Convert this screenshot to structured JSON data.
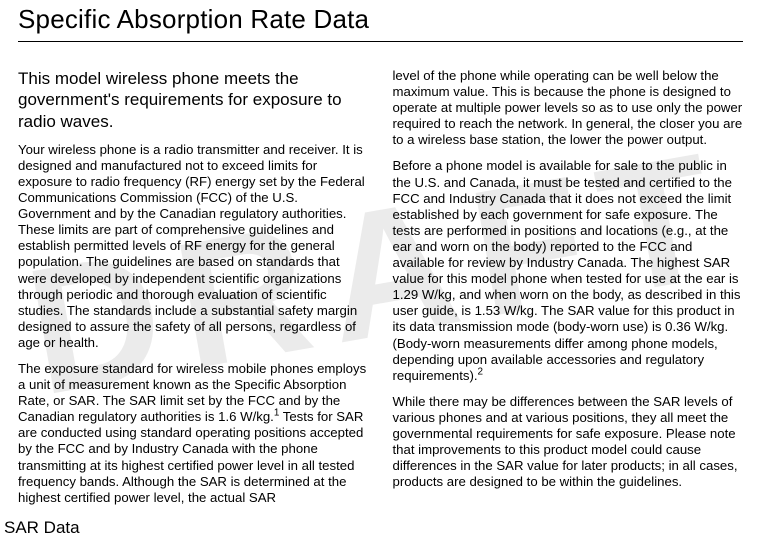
{
  "watermark": "DRAFT",
  "title": "Specific Absorption Rate Data",
  "subhead": "This model wireless phone meets the government's requirements for exposure to radio waves.",
  "left_paras": [
    "Your wireless phone is a radio transmitter and receiver. It is designed and manufactured not to exceed limits for exposure to radio frequency (RF) energy set by the Federal Communications Commission (FCC) of the U.S. Government and by the Canadian regulatory authorities. These limits are part of comprehensive guidelines and establish permitted levels of RF energy for the general population. The guidelines are based on standards that were developed by independent scientific organizations through periodic and thorough evaluation of scientific studies. The standards include a substantial safety margin designed to assure the safety of all persons, regardless of age or health."
  ],
  "left_para2_pre": "The exposure standard for wireless mobile phones employs a unit of measurement known as the Specific Absorption Rate, or SAR. The SAR limit set by the FCC and by the Canadian regulatory authorities is 1.6 W/kg.",
  "left_para2_sup": "1",
  "left_para2_post": " Tests for SAR are conducted using standard operating positions accepted by the FCC and by Industry Canada with the phone transmitting at its highest certified power level in all tested frequency bands. Although the SAR is determined at the highest certified power level, the actual SAR ",
  "right_para1": "level of the phone while operating can be well below the maximum value. This is because the phone is designed to operate at multiple power levels so as to use only the power required to reach the network. In general, the closer you are to a wireless base station, the lower the power output.",
  "right_para2_pre": "Before a phone model is available for sale to the public in the U.S. and Canada, it must be tested and certified to the FCC and Industry Canada that it does not exceed the limit established by each government for safe exposure. The tests are performed in positions and locations (e.g., at the ear and worn on the body) reported to the FCC and available for review by Industry Canada. The highest SAR value for this model phone when tested for use at the ear is 1.29 W/kg, and when worn on the body, as described in this user guide, is 1.53 W/kg. The SAR value for this product in its data transmission mode (body-worn use) is 0.36 W/kg. (Body-worn measurements differ among phone models, depending upon available accessories and regulatory requirements).",
  "right_para2_sup": "2",
  "right_para3": "While there may be differences between the SAR levels of various phones and at various positions, they all meet the governmental requirements for safe exposure. Please note that improvements to this product model could cause differences in the SAR value for later products; in all cases, products are designed to be within the guidelines.",
  "footer": "SAR Data"
}
